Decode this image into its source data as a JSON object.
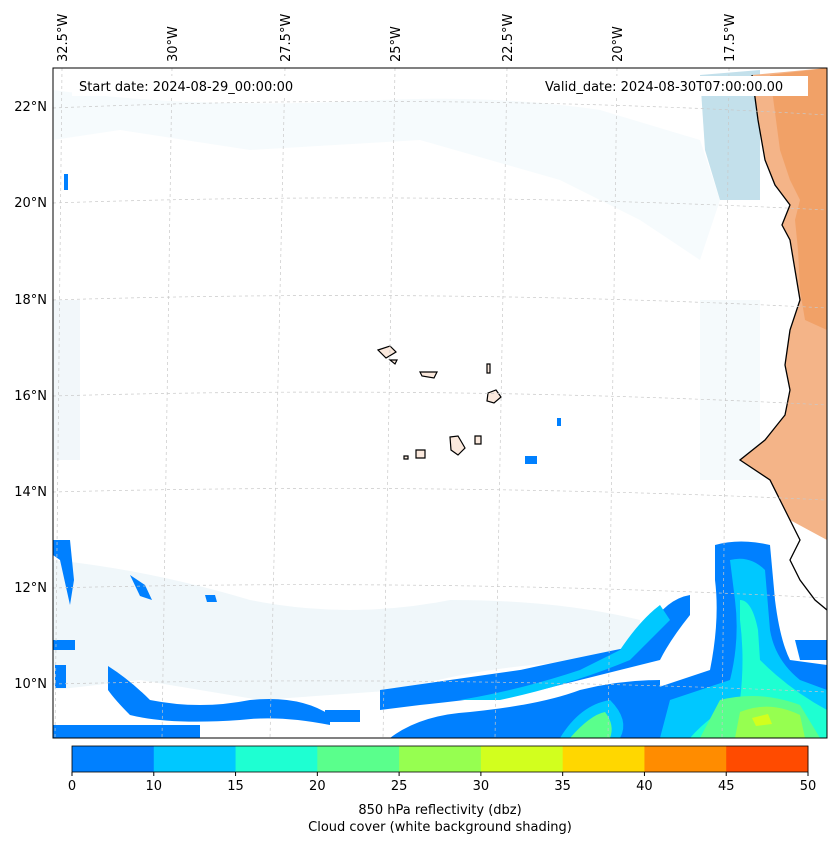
{
  "map": {
    "start_date_label": "Start date: 2024-08-29_00:00:00",
    "valid_date_label": "Valid_date: 2024-08-30T07:00:00.00",
    "lon_ticks": [
      "32.5°W",
      "30°W",
      "27.5°W",
      "25°W",
      "22.5°W",
      "20°W",
      "17.5°W"
    ],
    "lat_ticks": [
      "22°N",
      "20°N",
      "18°N",
      "16°N",
      "14°N",
      "12°N",
      "10°N"
    ],
    "extent": {
      "lon_min": -32.6,
      "lon_max": -15.3,
      "lat_min": 8.9,
      "lat_max": 22.8
    },
    "colors": {
      "coastline": "#000000",
      "gridline": "#c8c8c8",
      "cloud_cover": "#d6eaf2",
      "land_warm": "#f2a066"
    }
  },
  "colorbar": {
    "ticks": [
      "0",
      "10",
      "15",
      "20",
      "25",
      "30",
      "35",
      "40",
      "45",
      "50"
    ],
    "colors": [
      "#0080ff",
      "#00c8ff",
      "#1effd2",
      "#5aff8c",
      "#96ff50",
      "#d2ff1e",
      "#ffd700",
      "#ff8c00",
      "#ff4b00"
    ],
    "title_line1": "850 hPa reflectivity (dbz)",
    "title_line2": "Cloud cover (white background shading)"
  }
}
